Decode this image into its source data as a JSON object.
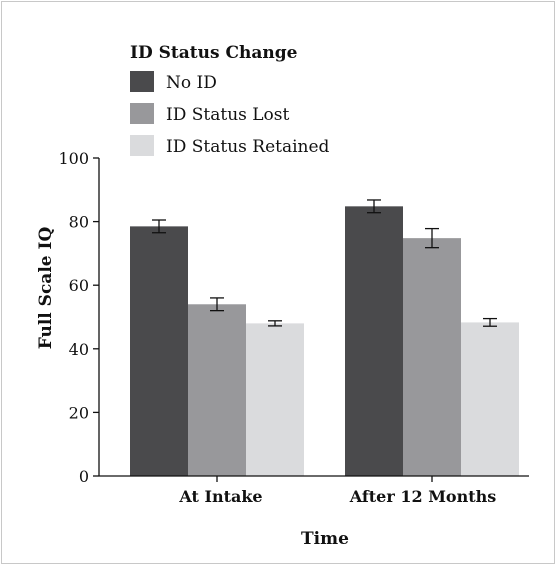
{
  "chart_data": {
    "type": "bar",
    "title": "",
    "xlabel": "Time",
    "ylabel": "Full Scale IQ",
    "ylim": [
      0,
      100
    ],
    "yticks": [
      0,
      20,
      40,
      60,
      80,
      100
    ],
    "grid": false,
    "legend_position": "top-left",
    "legend_title": "ID Status Change",
    "categories": [
      "At Intake",
      "After 12 Months"
    ],
    "series": [
      {
        "name": "No ID",
        "color": "#4a4a4c",
        "values": [
          78.5,
          84.8
        ],
        "error": [
          2.0,
          2.0
        ]
      },
      {
        "name": "ID Status Lost",
        "color": "#98989b",
        "values": [
          54.0,
          74.8
        ],
        "error": [
          2.0,
          3.0
        ]
      },
      {
        "name": "ID Status Retained",
        "color": "#dadbdd",
        "values": [
          48.0,
          48.3
        ],
        "error": [
          0.8,
          1.2
        ]
      }
    ]
  }
}
